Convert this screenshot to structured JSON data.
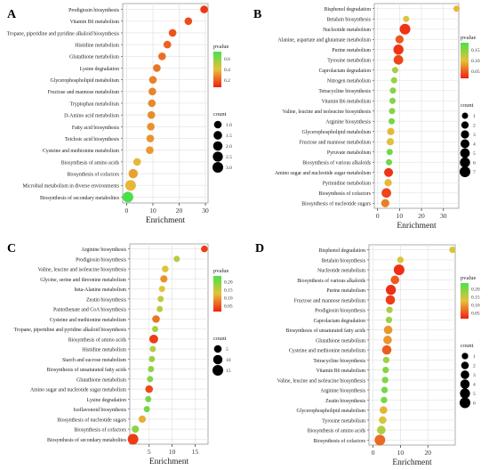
{
  "figure": {
    "xlabel": "Enrichment"
  },
  "legend_titles": {
    "color": "pvalue",
    "size": "count"
  },
  "colors": {
    "high_p": "#4be04b",
    "mid_p": "#e6c23a",
    "low_p": "#f02010",
    "grid": "#e6e6e6",
    "panel_border": "#999999"
  },
  "chart_data": [
    {
      "panel_label": "A",
      "type": "scatter",
      "xlabel": "Enrichment",
      "xticks": [
        0,
        10,
        20,
        30
      ],
      "xlim": [
        -1.5,
        31
      ],
      "color_ticks": [
        "0.6",
        "0.4",
        "0.2"
      ],
      "color_range": [
        0.0,
        0.75
      ],
      "size_legend": [
        "1.0",
        "1.5",
        "2.0",
        "2.5",
        "3.0"
      ],
      "categories": [
        "Prodigiosin biosynthesis",
        "Vitamin B6 metabolism",
        "Tropane, piperidine and pyridine alkaloid biosynthesis",
        "Histidine metabolism",
        "Glutathione metabolism",
        "Lysine degradation",
        "Glycerophospholipid metabolism",
        "Fructose and mannose metabolism",
        "Tryptophan metabolism",
        "D-Amino acid metabolism",
        "Fatty acid biosynthesis",
        "Teichoic acid biosynthesis",
        "Cysteine and methionine metabolism",
        "Biosynthesis of amino acids",
        "Biosynthesis of cofactors",
        "Microbial metabolism in diverse environments",
        "Biosynthesis of secondary metabolites"
      ],
      "x": [
        29.5,
        23.5,
        17.5,
        15.5,
        13.5,
        11.5,
        10.0,
        9.8,
        9.6,
        9.4,
        9.2,
        9.0,
        8.8,
        4.0,
        2.5,
        1.5,
        0.5
      ],
      "pvalue": [
        0.05,
        0.1,
        0.12,
        0.15,
        0.18,
        0.2,
        0.22,
        0.23,
        0.24,
        0.25,
        0.26,
        0.27,
        0.28,
        0.35,
        0.3,
        0.35,
        0.75
      ],
      "count": [
        1,
        1,
        1,
        1,
        1,
        1,
        1,
        1,
        1,
        1,
        1,
        1,
        1,
        1,
        2,
        3,
        3
      ]
    },
    {
      "panel_label": "B",
      "type": "scatter",
      "xlabel": "Enrichment",
      "xticks": [
        0,
        10,
        20,
        30
      ],
      "xlim": [
        -1.5,
        37
      ],
      "color_ticks": [
        "0.15",
        "0.10",
        "0.05"
      ],
      "color_range": [
        0.0,
        0.17
      ],
      "size_legend": [
        "1",
        "2",
        "3",
        "4",
        "5",
        "6",
        "7"
      ],
      "categories": [
        "Bisphenol degradation",
        "Betalain biosynthesis",
        "Nucleotide metabolism",
        "Alanine, aspartate and glutamate metabolism",
        "Purine metabolism",
        "Tyrosine metabolism",
        "Caprolactam degradation",
        "Nitrogen metabolism",
        "Tetracycline biosynthesis",
        "Vitamin B6 metabolism",
        "Valine, leucine and isoleucine biosynthesis",
        "Arginine biosynthesis",
        "Glycerophospholipid metabolism",
        "Fructose and mannose metabolism",
        "Pyruvate metabolism",
        "Biosynthesis of various alkaloids",
        "Amino sugar and nucleotide sugar metabolism",
        "Pyrimidine metabolism",
        "Biosynthesis of cofactors",
        "Biosynthesis of nucleotide sugars"
      ],
      "x": [
        36.0,
        13.0,
        12.5,
        10.0,
        9.5,
        9.5,
        8.0,
        7.5,
        7.0,
        6.8,
        6.6,
        6.4,
        6.0,
        5.8,
        5.5,
        5.2,
        5.0,
        4.8,
        4.0,
        3.5
      ],
      "pvalue": [
        0.08,
        0.09,
        0.01,
        0.03,
        0.01,
        0.02,
        0.12,
        0.13,
        0.14,
        0.14,
        0.14,
        0.15,
        0.08,
        0.09,
        0.15,
        0.15,
        0.01,
        0.08,
        0.02,
        0.05
      ],
      "count": [
        1,
        1,
        7,
        3,
        6,
        5,
        1,
        1,
        1,
        1,
        1,
        1,
        2,
        2,
        1,
        1,
        4,
        2,
        5,
        3
      ]
    },
    {
      "panel_label": "C",
      "type": "scatter",
      "xlabel": "Enrichment",
      "xticks": [
        5,
        10,
        15
      ],
      "xlim": [
        0.8,
        17.8
      ],
      "color_ticks": [
        "0.20",
        "0.15",
        "0.10",
        "0.05"
      ],
      "color_range": [
        0.0,
        0.23
      ],
      "size_legend": [
        "5",
        "10",
        "15"
      ],
      "categories": [
        "Arginine biosynthesis",
        "Prodigiosin biosynthesis",
        "Valine, leucine and isoleucine biosynthesis",
        "Glycine, serine and threonine metabolism",
        "beta-Alanine metabolism",
        "Zeatin biosynthesis",
        "Pantothenate and CoA biosynthesis",
        "Cysteine and methionine metabolism",
        "Tropane, piperidine and pyridine alkaloid biosynthesis",
        "Biosynthesis of amino acids",
        "Histidine metabolism",
        "Starch and sucrose metabolism",
        "Biosynthesis of unsaturated fatty acids",
        "Glutathione metabolism",
        "Amino sugar and nucleotide sugar metabolism",
        "Lysine degradation",
        "Isoflavonoid biosynthesis",
        "Biosynthesis of nucleotide sugars",
        "Biosynthesis of cofactors",
        "Biosynthesis of secondary metabolites"
      ],
      "x": [
        17.0,
        11.0,
        8.5,
        8.2,
        7.8,
        7.5,
        7.3,
        6.5,
        6.3,
        6.0,
        5.8,
        5.6,
        5.4,
        5.2,
        5.0,
        4.8,
        4.5,
        3.5,
        2.0,
        1.5
      ],
      "pvalue": [
        0.02,
        0.15,
        0.12,
        0.08,
        0.12,
        0.14,
        0.15,
        0.06,
        0.16,
        0.02,
        0.15,
        0.17,
        0.18,
        0.19,
        0.03,
        0.2,
        0.2,
        0.1,
        0.18,
        0.02
      ],
      "count": [
        3,
        2,
        3,
        4,
        2,
        2,
        2,
        5,
        2,
        8,
        2,
        2,
        2,
        2,
        5,
        2,
        2,
        4,
        4,
        15
      ]
    },
    {
      "panel_label": "D",
      "type": "scatter",
      "xlabel": "Enrichment",
      "xticks": [
        0,
        10,
        20
      ],
      "xlim": [
        -1.5,
        30
      ],
      "color_ticks": [
        "0.20",
        "0.15",
        "0.10",
        "0.05"
      ],
      "color_range": [
        0.0,
        0.22
      ],
      "size_legend": [
        "1",
        "2",
        "3",
        "4",
        "5",
        "6"
      ],
      "categories": [
        "Bisphenol degradation",
        "Betalain biosynthesis",
        "Nucleotide metabolism",
        "Biosynthesis of various alkaloids",
        "Purine metabolism",
        "Fructose and mannose metabolism",
        "Prodigiosin biosynthesis",
        "Caprolactam degradation",
        "Biosynthesis of unsaturated fatty acids",
        "Glutathione metabolism",
        "Cysteine and methionine metabolism",
        "Tetracycline biosynthesis",
        "Vitamin B6 metabolism",
        "Valine, leucine and isoleucine biosynthesis",
        "Arginine biosynthesis",
        "Zeatin biosynthesis",
        "Glycerophospholipid metabolism",
        "Tyrosine metabolism",
        "Biosynthesis of amino acids",
        "Biosynthesis of cofactors"
      ],
      "x": [
        29.0,
        10.0,
        9.5,
        8.0,
        6.5,
        6.3,
        6.0,
        5.8,
        5.5,
        5.3,
        5.0,
        4.8,
        4.6,
        4.4,
        4.2,
        4.0,
        3.8,
        3.5,
        3.0,
        2.5
      ],
      "pvalue": [
        0.12,
        0.12,
        0.01,
        0.04,
        0.01,
        0.02,
        0.15,
        0.16,
        0.08,
        0.08,
        0.04,
        0.16,
        0.18,
        0.18,
        0.19,
        0.19,
        0.1,
        0.12,
        0.15,
        0.05
      ],
      "count": [
        1,
        1,
        6,
        3,
        5,
        4,
        1,
        1,
        3,
        3,
        4,
        1,
        1,
        1,
        1,
        1,
        2,
        2,
        3,
        6
      ]
    }
  ]
}
